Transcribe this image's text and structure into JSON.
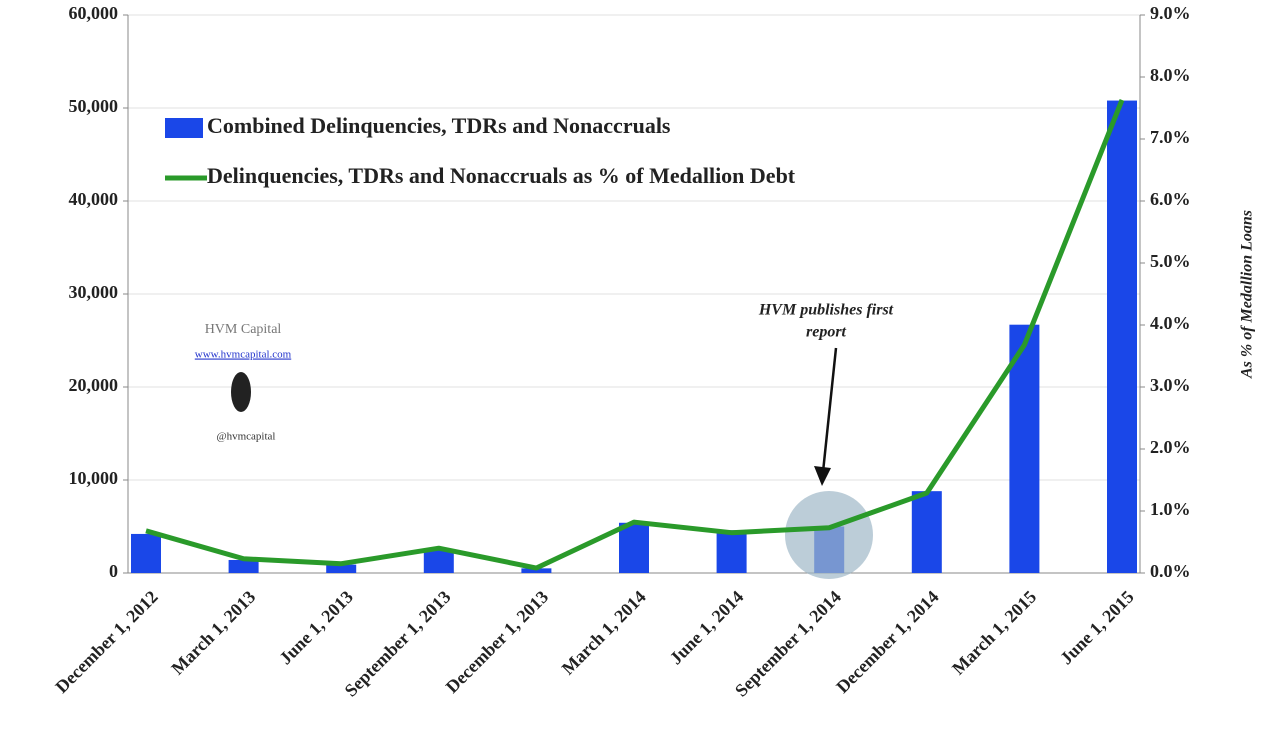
{
  "chart_data": {
    "type": "bar",
    "categories": [
      "December 1, 2012",
      "March 1, 2013",
      "June 1, 2013",
      "September 1, 2013",
      "December 1, 2013",
      "March 1, 2014",
      "June 1, 2014",
      "September 1, 2014",
      "December 1, 2014",
      "March 1, 2015",
      "June 1, 2015"
    ],
    "series": [
      {
        "name": "Combined Delinquencies, TDRs and Nonaccruals",
        "type": "bar",
        "color": "#1a47e8",
        "values": [
          4200,
          1400,
          900,
          2500,
          500,
          5400,
          4600,
          5000,
          8800,
          26700,
          50800
        ]
      },
      {
        "name": "Delinquencies, TDRs and Nonaccruals as % of Medallion Debt",
        "type": "line",
        "axis": "y2",
        "color": "#2a9a2a",
        "values": [
          0.68,
          0.23,
          0.15,
          0.4,
          0.08,
          0.82,
          0.65,
          0.73,
          1.29,
          3.68,
          7.63
        ]
      }
    ],
    "ylim": [
      0,
      60000
    ],
    "yticks": [
      0,
      {
        "value": 10000,
        "label": "10,000"
      },
      {
        "value": 20000,
        "label": "20,000"
      },
      {
        "value": 30000,
        "label": "30,000"
      },
      {
        "value": 40000,
        "label": "40,000"
      },
      {
        "value": 50000,
        "label": "50,000"
      },
      {
        "value": 60000,
        "label": "60,000"
      }
    ],
    "y2lim": [
      0,
      9
    ],
    "y2ticks": [
      {
        "value": 0,
        "label": "0.0%"
      },
      {
        "value": 1,
        "label": "1.0%"
      },
      {
        "value": 2,
        "label": "2.0%"
      },
      {
        "value": 3,
        "label": "3.0%"
      },
      {
        "value": 4,
        "label": "4.0%"
      },
      {
        "value": 5,
        "label": "5.0%"
      },
      {
        "value": 6,
        "label": "6.0%"
      },
      {
        "value": 7,
        "label": "7.0%"
      },
      {
        "value": 8,
        "label": "8.0%"
      },
      {
        "value": 9,
        "label": "9.0%"
      }
    ],
    "y2label": "As % of Medallion Loans",
    "annotation": [
      "HVM publishes first",
      "report"
    ],
    "watermark": [
      "HVM Capital",
      "www.hvmcapital.com",
      "@hvmcapital"
    ],
    "legend": "upper left"
  }
}
